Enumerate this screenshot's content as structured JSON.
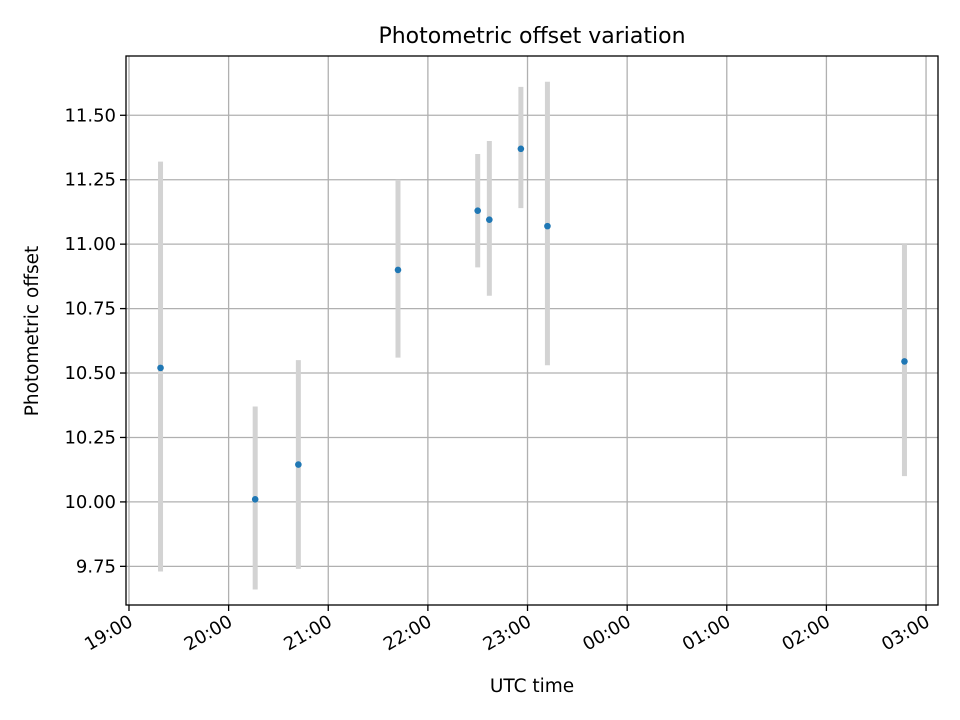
{
  "chart_data": {
    "type": "scatter",
    "title": "Photometric offset variation",
    "xlabel": "UTC time",
    "ylabel": "Photometric offset",
    "grid": true,
    "legend": "none",
    "x_ticks": [
      "19:00",
      "20:00",
      "21:00",
      "22:00",
      "23:00",
      "00:00",
      "01:00",
      "02:00",
      "03:00"
    ],
    "x_tick_hours": [
      0,
      1,
      2,
      3,
      4,
      5,
      6,
      7,
      8
    ],
    "xlim": [
      -0.03,
      8.12
    ],
    "y_ticks": [
      "9.75",
      "10.00",
      "10.25",
      "10.50",
      "10.75",
      "11.00",
      "11.25",
      "11.50"
    ],
    "y_tick_values": [
      9.75,
      10.0,
      10.25,
      10.5,
      10.75,
      11.0,
      11.25,
      11.5
    ],
    "ylim": [
      9.6,
      11.73
    ],
    "series": [
      {
        "marker_color": "#1f77b4",
        "errorbar_color": "#d3d3d3",
        "points": [
          {
            "time": "19:19",
            "y": 10.52,
            "y_low": 9.73,
            "y_high": 11.32
          },
          {
            "time": "20:16",
            "y": 10.01,
            "y_low": 9.66,
            "y_high": 10.37
          },
          {
            "time": "20:42",
            "y": 10.145,
            "y_low": 9.74,
            "y_high": 10.55
          },
          {
            "time": "21:42",
            "y": 10.9,
            "y_low": 10.56,
            "y_high": 11.25
          },
          {
            "time": "22:30",
            "y": 11.13,
            "y_low": 10.91,
            "y_high": 11.35
          },
          {
            "time": "22:37",
            "y": 11.095,
            "y_low": 10.8,
            "y_high": 11.4
          },
          {
            "time": "22:56",
            "y": 11.37,
            "y_low": 11.14,
            "y_high": 11.61
          },
          {
            "time": "23:12",
            "y": 11.07,
            "y_low": 10.53,
            "y_high": 11.63
          },
          {
            "time": "02:47",
            "y": 10.545,
            "y_low": 10.1,
            "y_high": 11.0
          }
        ]
      }
    ]
  }
}
